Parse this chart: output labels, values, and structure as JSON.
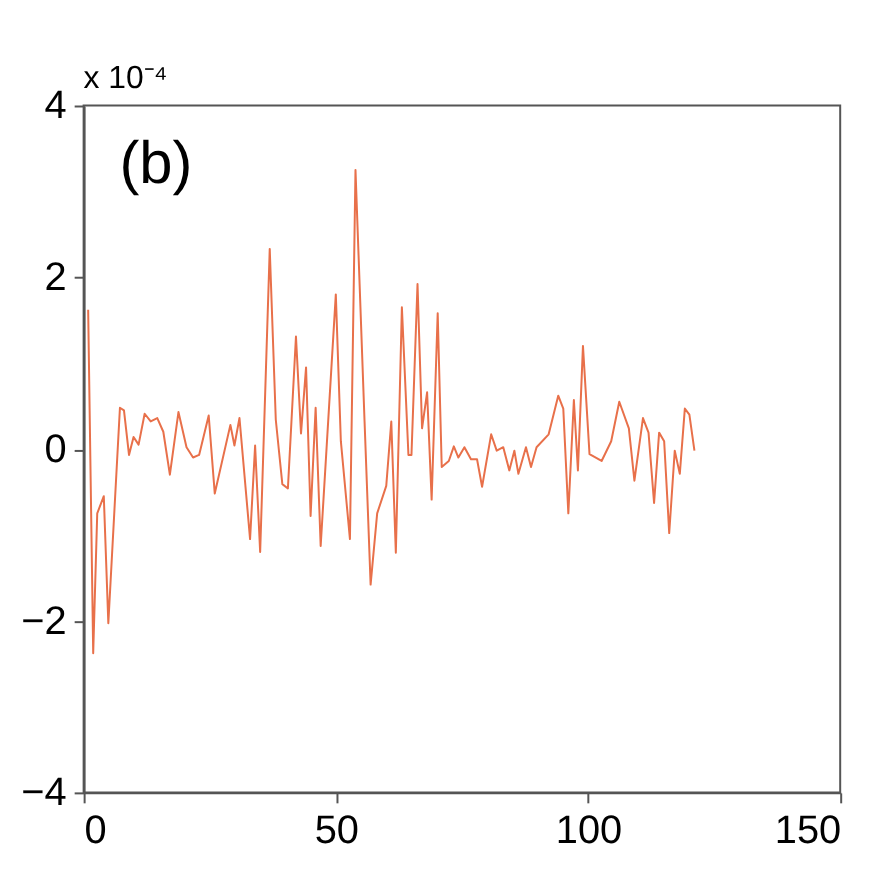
{
  "chart_data": {
    "type": "line",
    "x": [
      0.9,
      1.9,
      2.7,
      4,
      4.9,
      7.2,
      8,
      9,
      9.9,
      10.9,
      12.1,
      13.3,
      14.6,
      15.8,
      17.1,
      18.8,
      20.4,
      21.7,
      22.9,
      24.8,
      26,
      29.1,
      29.9,
      30.9,
      33,
      34,
      35,
      36.9,
      38.1,
      39.4,
      40.5,
      42.1,
      43.1,
      44.1,
      45,
      46,
      47,
      50,
      51,
      52.8,
      53.9,
      55.7,
      56.9,
      58.2,
      60,
      61,
      61.9,
      63.1,
      64.4,
      65,
      66.2,
      67.1,
      68.1,
      69,
      70.2,
      71,
      72.4,
      73.4,
      74.3,
      75.5,
      76.8,
      78,
      79,
      80.8,
      81.9,
      83.2,
      84.4,
      85.4,
      86.2,
      87.7,
      88.7,
      89.8,
      92.2,
      94.1,
      95.1,
      96.1,
      97.2,
      98,
      99,
      100.3,
      102.7,
      104.6,
      106.2,
      108.1,
      109.2,
      110.9,
      112,
      113.1,
      114.1,
      115.1,
      116.1,
      117.2,
      118.2,
      119.2,
      120.1,
      121.1
    ],
    "series": [
      {
        "color": "#e8704a",
        "values": [
          1.62,
          -2.38,
          -0.75,
          -0.55,
          -2.03,
          0.48,
          0.45,
          -0.07,
          0.14,
          0.05,
          0.41,
          0.32,
          0.36,
          0.2,
          -0.3,
          0.43,
          0.02,
          -0.1,
          -0.07,
          0.39,
          -0.52,
          0.28,
          0.04,
          0.36,
          -1.05,
          0.04,
          -1.2,
          2.33,
          0.34,
          -0.41,
          -0.46,
          1.31,
          0.18,
          0.95,
          -0.78,
          0.48,
          -1.13,
          1.8,
          0.09,
          -1.05,
          3.25,
          0.32,
          -1.58,
          -0.75,
          -0.43,
          0.32,
          -1.21,
          1.65,
          -0.07,
          -0.07,
          1.92,
          0.24,
          0.66,
          -0.59,
          1.58,
          -0.21,
          -0.14,
          0.03,
          -0.1,
          0.02,
          -0.12,
          -0.12,
          -0.44,
          0.17,
          -0.02,
          0.02,
          -0.25,
          -0.02,
          -0.29,
          0.02,
          -0.21,
          0.02,
          0.17,
          0.62,
          0.47,
          -0.75,
          0.57,
          -0.25,
          1.2,
          -0.06,
          -0.14,
          0.09,
          0.55,
          0.24,
          -0.37,
          0.36,
          0.19,
          -0.63,
          0.19,
          0.09,
          -0.98,
          -0.02,
          -0.29,
          0.47,
          0.4,
          -0.02
        ]
      }
    ],
    "xlim": [
      0,
      150
    ],
    "xticks": [
      0,
      50,
      100,
      150
    ],
    "ylim": [
      -4,
      4
    ],
    "yticks": [
      -4,
      -2,
      0,
      2,
      4
    ],
    "grid": false,
    "marker": "none",
    "line_style": "solid",
    "annotations": [
      "(b)",
      "x 10⁻⁴"
    ]
  }
}
